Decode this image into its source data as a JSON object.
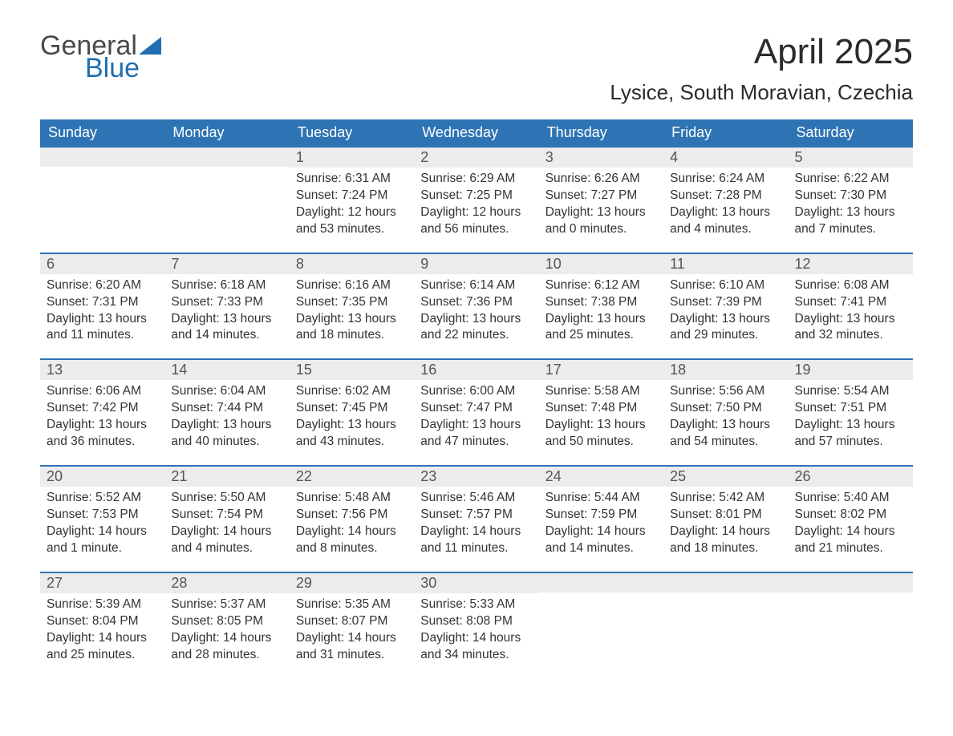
{
  "brand": {
    "word1": "General",
    "word2": "Blue",
    "triangle_color": "#1f6fb2"
  },
  "title": "April 2025",
  "location": "Lysice, South Moravian, Czechia",
  "colors": {
    "header_bg": "#2e74b5",
    "header_text": "#ffffff",
    "daynum_bg": "#ececec",
    "daynum_border": "#2e74b5",
    "body_text": "#333333",
    "page_bg": "#ffffff"
  },
  "day_headers": [
    "Sunday",
    "Monday",
    "Tuesday",
    "Wednesday",
    "Thursday",
    "Friday",
    "Saturday"
  ],
  "weeks": [
    [
      {
        "n": "",
        "lines": []
      },
      {
        "n": "",
        "lines": []
      },
      {
        "n": "1",
        "lines": [
          "Sunrise: 6:31 AM",
          "Sunset: 7:24 PM",
          "Daylight: 12 hours and 53 minutes."
        ]
      },
      {
        "n": "2",
        "lines": [
          "Sunrise: 6:29 AM",
          "Sunset: 7:25 PM",
          "Daylight: 12 hours and 56 minutes."
        ]
      },
      {
        "n": "3",
        "lines": [
          "Sunrise: 6:26 AM",
          "Sunset: 7:27 PM",
          "Daylight: 13 hours and 0 minutes."
        ]
      },
      {
        "n": "4",
        "lines": [
          "Sunrise: 6:24 AM",
          "Sunset: 7:28 PM",
          "Daylight: 13 hours and 4 minutes."
        ]
      },
      {
        "n": "5",
        "lines": [
          "Sunrise: 6:22 AM",
          "Sunset: 7:30 PM",
          "Daylight: 13 hours and 7 minutes."
        ]
      }
    ],
    [
      {
        "n": "6",
        "lines": [
          "Sunrise: 6:20 AM",
          "Sunset: 7:31 PM",
          "Daylight: 13 hours and 11 minutes."
        ]
      },
      {
        "n": "7",
        "lines": [
          "Sunrise: 6:18 AM",
          "Sunset: 7:33 PM",
          "Daylight: 13 hours and 14 minutes."
        ]
      },
      {
        "n": "8",
        "lines": [
          "Sunrise: 6:16 AM",
          "Sunset: 7:35 PM",
          "Daylight: 13 hours and 18 minutes."
        ]
      },
      {
        "n": "9",
        "lines": [
          "Sunrise: 6:14 AM",
          "Sunset: 7:36 PM",
          "Daylight: 13 hours and 22 minutes."
        ]
      },
      {
        "n": "10",
        "lines": [
          "Sunrise: 6:12 AM",
          "Sunset: 7:38 PM",
          "Daylight: 13 hours and 25 minutes."
        ]
      },
      {
        "n": "11",
        "lines": [
          "Sunrise: 6:10 AM",
          "Sunset: 7:39 PM",
          "Daylight: 13 hours and 29 minutes."
        ]
      },
      {
        "n": "12",
        "lines": [
          "Sunrise: 6:08 AM",
          "Sunset: 7:41 PM",
          "Daylight: 13 hours and 32 minutes."
        ]
      }
    ],
    [
      {
        "n": "13",
        "lines": [
          "Sunrise: 6:06 AM",
          "Sunset: 7:42 PM",
          "Daylight: 13 hours and 36 minutes."
        ]
      },
      {
        "n": "14",
        "lines": [
          "Sunrise: 6:04 AM",
          "Sunset: 7:44 PM",
          "Daylight: 13 hours and 40 minutes."
        ]
      },
      {
        "n": "15",
        "lines": [
          "Sunrise: 6:02 AM",
          "Sunset: 7:45 PM",
          "Daylight: 13 hours and 43 minutes."
        ]
      },
      {
        "n": "16",
        "lines": [
          "Sunrise: 6:00 AM",
          "Sunset: 7:47 PM",
          "Daylight: 13 hours and 47 minutes."
        ]
      },
      {
        "n": "17",
        "lines": [
          "Sunrise: 5:58 AM",
          "Sunset: 7:48 PM",
          "Daylight: 13 hours and 50 minutes."
        ]
      },
      {
        "n": "18",
        "lines": [
          "Sunrise: 5:56 AM",
          "Sunset: 7:50 PM",
          "Daylight: 13 hours and 54 minutes."
        ]
      },
      {
        "n": "19",
        "lines": [
          "Sunrise: 5:54 AM",
          "Sunset: 7:51 PM",
          "Daylight: 13 hours and 57 minutes."
        ]
      }
    ],
    [
      {
        "n": "20",
        "lines": [
          "Sunrise: 5:52 AM",
          "Sunset: 7:53 PM",
          "Daylight: 14 hours and 1 minute."
        ]
      },
      {
        "n": "21",
        "lines": [
          "Sunrise: 5:50 AM",
          "Sunset: 7:54 PM",
          "Daylight: 14 hours and 4 minutes."
        ]
      },
      {
        "n": "22",
        "lines": [
          "Sunrise: 5:48 AM",
          "Sunset: 7:56 PM",
          "Daylight: 14 hours and 8 minutes."
        ]
      },
      {
        "n": "23",
        "lines": [
          "Sunrise: 5:46 AM",
          "Sunset: 7:57 PM",
          "Daylight: 14 hours and 11 minutes."
        ]
      },
      {
        "n": "24",
        "lines": [
          "Sunrise: 5:44 AM",
          "Sunset: 7:59 PM",
          "Daylight: 14 hours and 14 minutes."
        ]
      },
      {
        "n": "25",
        "lines": [
          "Sunrise: 5:42 AM",
          "Sunset: 8:01 PM",
          "Daylight: 14 hours and 18 minutes."
        ]
      },
      {
        "n": "26",
        "lines": [
          "Sunrise: 5:40 AM",
          "Sunset: 8:02 PM",
          "Daylight: 14 hours and 21 minutes."
        ]
      }
    ],
    [
      {
        "n": "27",
        "lines": [
          "Sunrise: 5:39 AM",
          "Sunset: 8:04 PM",
          "Daylight: 14 hours and 25 minutes."
        ]
      },
      {
        "n": "28",
        "lines": [
          "Sunrise: 5:37 AM",
          "Sunset: 8:05 PM",
          "Daylight: 14 hours and 28 minutes."
        ]
      },
      {
        "n": "29",
        "lines": [
          "Sunrise: 5:35 AM",
          "Sunset: 8:07 PM",
          "Daylight: 14 hours and 31 minutes."
        ]
      },
      {
        "n": "30",
        "lines": [
          "Sunrise: 5:33 AM",
          "Sunset: 8:08 PM",
          "Daylight: 14 hours and 34 minutes."
        ]
      },
      {
        "n": "",
        "lines": []
      },
      {
        "n": "",
        "lines": []
      },
      {
        "n": "",
        "lines": []
      }
    ]
  ]
}
